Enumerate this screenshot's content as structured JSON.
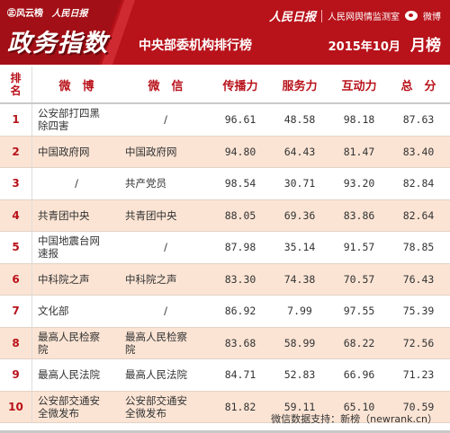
{
  "header": {
    "brand_left": "㊣风云榜",
    "brand_left2": "人民日报",
    "big_title": "政务指数",
    "subtitle": "中央部委机构排行榜",
    "brand_rmrb": "人民日报",
    "brand_monitor": "人民网舆情监测室",
    "brand_weibo": "微博",
    "month": "2015年10月",
    "rank_label": "月榜",
    "accent_color": "#b8121a"
  },
  "columns": {
    "rank_1": "排",
    "rank_2": "名",
    "weibo": "微　博",
    "weixin": "微　信",
    "spread": "传播力",
    "service": "服务力",
    "interact": "互动力",
    "total": "总　分"
  },
  "rows": [
    {
      "rank": "1",
      "weibo": [
        "公安部打四黑",
        "除四害"
      ],
      "weixin": [
        "/"
      ],
      "spread": "96.61",
      "service": "48.58",
      "interact": "98.18",
      "total": "87.63"
    },
    {
      "rank": "2",
      "weibo": [
        "中国政府网"
      ],
      "weixin": [
        "中国政府网"
      ],
      "spread": "94.80",
      "service": "64.43",
      "interact": "81.47",
      "total": "83.40"
    },
    {
      "rank": "3",
      "weibo": [
        "/"
      ],
      "weixin": [
        "共产党员"
      ],
      "spread": "98.54",
      "service": "30.71",
      "interact": "93.20",
      "total": "82.84"
    },
    {
      "rank": "4",
      "weibo": [
        "共青团中央"
      ],
      "weixin": [
        "共青团中央"
      ],
      "spread": "88.05",
      "service": "69.36",
      "interact": "83.86",
      "total": "82.64"
    },
    {
      "rank": "5",
      "weibo": [
        "中国地震台网",
        "速报"
      ],
      "weixin": [
        "/"
      ],
      "spread": "87.98",
      "service": "35.14",
      "interact": "91.57",
      "total": "78.85"
    },
    {
      "rank": "6",
      "weibo": [
        "中科院之声"
      ],
      "weixin": [
        "中科院之声"
      ],
      "spread": "83.30",
      "service": "74.38",
      "interact": "70.57",
      "total": "76.43"
    },
    {
      "rank": "7",
      "weibo": [
        "文化部"
      ],
      "weixin": [
        "/"
      ],
      "spread": "86.92",
      "service": "7.99",
      "interact": "97.55",
      "total": "75.39"
    },
    {
      "rank": "8",
      "weibo": [
        "最高人民检察",
        "院"
      ],
      "weixin": [
        "最高人民检察",
        "院"
      ],
      "spread": "83.68",
      "service": "58.99",
      "interact": "68.22",
      "total": "72.56"
    },
    {
      "rank": "9",
      "weibo": [
        "最高人民法院"
      ],
      "weixin": [
        "最高人民法院"
      ],
      "spread": "84.71",
      "service": "52.83",
      "interact": "66.96",
      "total": "71.23"
    },
    {
      "rank": "10",
      "weibo": [
        "公安部交通安",
        "全微发布"
      ],
      "weixin": [
        "公安部交通安",
        "全微发布"
      ],
      "spread": "81.82",
      "service": "59.11",
      "interact": "65.10",
      "total": "70.59"
    }
  ],
  "footer": "微信数据支持：新榜（newrank.cn）"
}
